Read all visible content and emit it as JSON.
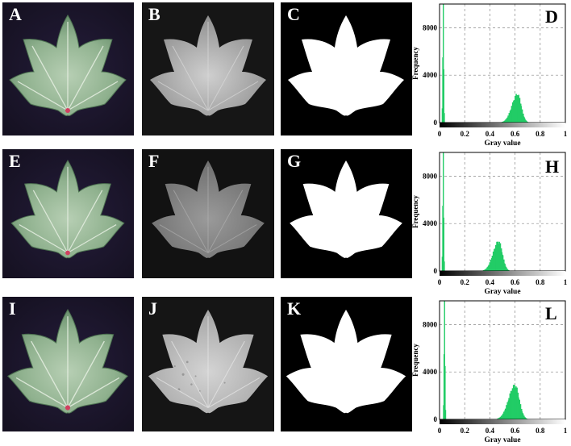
{
  "figure": {
    "rows": [
      {
        "panels": [
          {
            "label": "A",
            "kind": "color-leaf"
          },
          {
            "label": "B",
            "kind": "gray-leaf"
          },
          {
            "label": "C",
            "kind": "mask-leaf"
          }
        ],
        "histogram_label": "D"
      },
      {
        "panels": [
          {
            "label": "E",
            "kind": "color-leaf"
          },
          {
            "label": "F",
            "kind": "gray-leaf"
          },
          {
            "label": "G",
            "kind": "mask-leaf"
          }
        ],
        "histogram_label": "H"
      },
      {
        "panels": [
          {
            "label": "I",
            "kind": "color-leaf"
          },
          {
            "label": "J",
            "kind": "gray-leaf"
          },
          {
            "label": "K",
            "kind": "mask-leaf"
          }
        ],
        "histogram_label": "L"
      }
    ],
    "colors": {
      "leaf_background": "#1c1630",
      "leaf_green": "#8fb390",
      "gray_background": "#141414",
      "gray_leaf": "#a8a8a8",
      "mask_background": "#000000",
      "mask_leaf": "#ffffff",
      "histogram_bar": "#22cc66"
    }
  },
  "chart_data": [
    {
      "type": "bar",
      "panel": "D",
      "xlabel": "Gray value",
      "ylabel": "Frequency",
      "xlim": [
        0,
        1
      ],
      "ylim": [
        0,
        10000
      ],
      "x_ticks": [
        "0",
        "0.2",
        "0.4",
        "0.6",
        "0.8",
        "1"
      ],
      "y_ticks": [
        "0",
        "4000",
        "8000"
      ],
      "grid": true,
      "background_peak": {
        "x": 0.03,
        "value": 10000
      },
      "leaf_peak": {
        "x": 0.62,
        "value": 2500,
        "spread": 0.035
      }
    },
    {
      "type": "bar",
      "panel": "H",
      "xlabel": "Gray value",
      "ylabel": "Frequency",
      "xlim": [
        0,
        1
      ],
      "ylim": [
        0,
        10000
      ],
      "x_ticks": [
        "0",
        "0.2",
        "0.4",
        "0.6",
        "0.8",
        "1"
      ],
      "y_ticks": [
        "0",
        "4000",
        "8000"
      ],
      "grid": true,
      "background_peak": {
        "x": 0.03,
        "value": 10000
      },
      "leaf_peak": {
        "x": 0.47,
        "value": 2600,
        "spread": 0.035
      }
    },
    {
      "type": "bar",
      "panel": "L",
      "xlabel": "Gray value",
      "ylabel": "Frequency",
      "xlim": [
        0,
        1
      ],
      "ylim": [
        0,
        10000
      ],
      "x_ticks": [
        "0",
        "0.2",
        "0.4",
        "0.6",
        "0.8",
        "1"
      ],
      "y_ticks": [
        "0",
        "4000",
        "8000"
      ],
      "grid": true,
      "background_peak": {
        "x": 0.04,
        "value": 10000
      },
      "leaf_peak": {
        "x": 0.6,
        "value": 3000,
        "spread": 0.04
      }
    }
  ]
}
